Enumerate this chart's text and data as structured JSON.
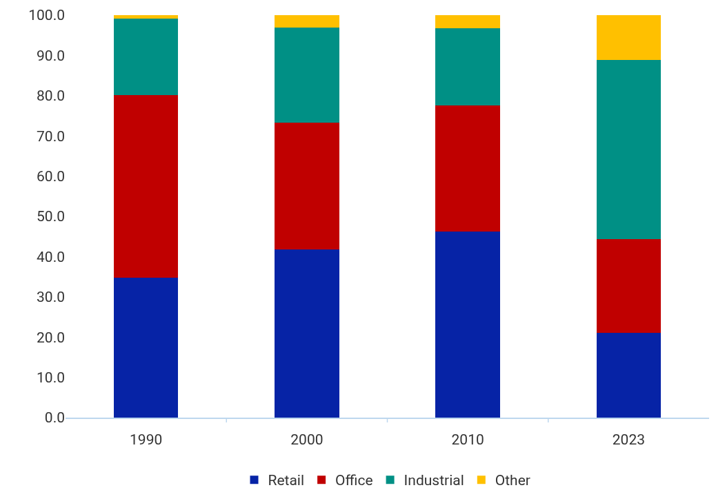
{
  "chart_data": {
    "type": "bar",
    "stacked": true,
    "categories": [
      "1990",
      "2000",
      "2010",
      "2023"
    ],
    "series": [
      {
        "name": "Retail",
        "color": "#0623a6",
        "values": [
          34.7,
          41.7,
          46.2,
          21.0
        ]
      },
      {
        "name": "Office",
        "color": "#c00000",
        "values": [
          45.4,
          31.6,
          31.3,
          23.4
        ]
      },
      {
        "name": "Industrial",
        "color": "#009085",
        "values": [
          19.1,
          23.7,
          19.2,
          44.5
        ]
      },
      {
        "name": "Other",
        "color": "#ffc000",
        "values": [
          0.8,
          3.0,
          3.3,
          11.1
        ]
      }
    ],
    "ylim": [
      0,
      100
    ],
    "yticks": [
      {
        "value": 0,
        "label": "0.0"
      },
      {
        "value": 10,
        "label": "10.0"
      },
      {
        "value": 20,
        "label": "20.0"
      },
      {
        "value": 30,
        "label": "30.0"
      },
      {
        "value": 40,
        "label": "40.0"
      },
      {
        "value": 50,
        "label": "50.0"
      },
      {
        "value": 60,
        "label": "60.0"
      },
      {
        "value": 70,
        "label": "70.0"
      },
      {
        "value": 80,
        "label": "80.0"
      },
      {
        "value": 90,
        "label": "90.0"
      },
      {
        "value": 100,
        "label": "100.0"
      }
    ],
    "grid": false,
    "legend": "bottom"
  }
}
